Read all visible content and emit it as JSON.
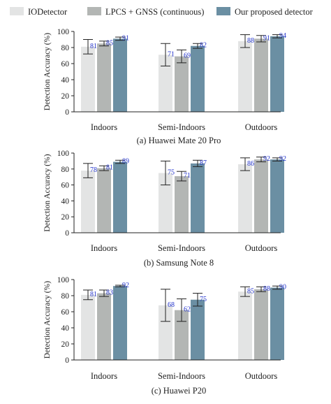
{
  "legend": {
    "placement": "top",
    "items": [
      {
        "label": "IODetector",
        "color": "#e3e4e4"
      },
      {
        "label": "LPCS + GNSS (continuous)",
        "color": "#b3b6b4"
      },
      {
        "label": "Our proposed detector",
        "color": "#6b8fa3"
      }
    ]
  },
  "value_label_color": "#2233cc",
  "chart_data": [
    {
      "type": "bar",
      "title": "(a) Huawei Mate 20 Pro",
      "ylabel": "Detection Accuracy (%)",
      "xlabel": "",
      "categories": [
        "Indoors",
        "Semi-Indoors",
        "Outdoors"
      ],
      "ylim": [
        0,
        100
      ],
      "yticks": [
        0,
        20,
        40,
        60,
        80,
        100
      ],
      "grid": false,
      "series": [
        {
          "name": "IODetector",
          "values": [
            81,
            71,
            88
          ],
          "err": [
            9,
            14,
            8
          ]
        },
        {
          "name": "LPCS + GNSS (continuous)",
          "values": [
            85,
            69,
            91
          ],
          "err": [
            3,
            8,
            4
          ]
        },
        {
          "name": "Our proposed detector",
          "values": [
            91,
            82,
            94
          ],
          "err": [
            2,
            3,
            2
          ]
        }
      ]
    },
    {
      "type": "bar",
      "title": "(b) Samsung Note 8",
      "ylabel": "Detection Accuracy (%)",
      "xlabel": "",
      "categories": [
        "Indoors",
        "Semi-Indoors",
        "Outdoors"
      ],
      "ylim": [
        0,
        100
      ],
      "yticks": [
        0,
        20,
        40,
        60,
        80,
        100
      ],
      "grid": false,
      "series": [
        {
          "name": "IODetector",
          "values": [
            78,
            75,
            86
          ],
          "err": [
            9,
            15,
            8
          ]
        },
        {
          "name": "LPCS + GNSS (continuous)",
          "values": [
            81,
            71,
            92
          ],
          "err": [
            3,
            6,
            3
          ]
        },
        {
          "name": "Our proposed detector",
          "values": [
            89,
            87,
            92
          ],
          "err": [
            2,
            4,
            2
          ]
        }
      ]
    },
    {
      "type": "bar",
      "title": "(c) Huawei P20",
      "ylabel": "Detection Accuracy (%)",
      "xlabel": "",
      "categories": [
        "Indoors",
        "Semi-Indoors",
        "Outdoors"
      ],
      "ylim": [
        0,
        100
      ],
      "yticks": [
        0,
        20,
        40,
        60,
        80,
        100
      ],
      "grid": false,
      "series": [
        {
          "name": "IODetector",
          "values": [
            81,
            68,
            85
          ],
          "err": [
            6,
            20,
            6
          ]
        },
        {
          "name": "LPCS + GNSS (continuous)",
          "values": [
            83,
            62,
            88
          ],
          "err": [
            4,
            14,
            3
          ]
        },
        {
          "name": "Our proposed detector",
          "values": [
            92,
            75,
            90
          ],
          "err": [
            1,
            8,
            2
          ]
        }
      ]
    }
  ]
}
